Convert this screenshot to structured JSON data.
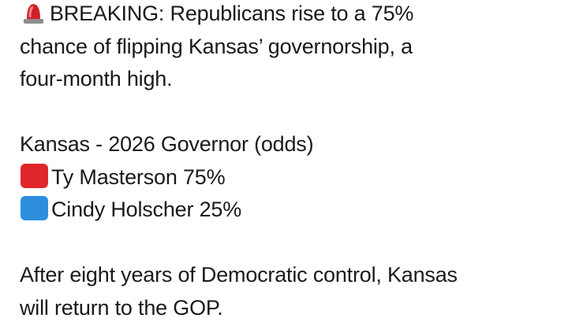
{
  "post": {
    "headline_lines": [
      "BREAKING: Republicans rise to a 75%",
      "chance of flipping Kansas’ governorship, a",
      "four-month high."
    ],
    "market": {
      "title": "Kansas - 2026 Governor (odds)",
      "candidates": [
        {
          "name": "Ty Masterson",
          "odds": "75%"
        },
        {
          "name": "Cindy Holscher",
          "odds": "25%"
        }
      ]
    },
    "closing_lines": [
      "After eight years of Democratic control, Kansas",
      "will return to the GOP."
    ]
  }
}
